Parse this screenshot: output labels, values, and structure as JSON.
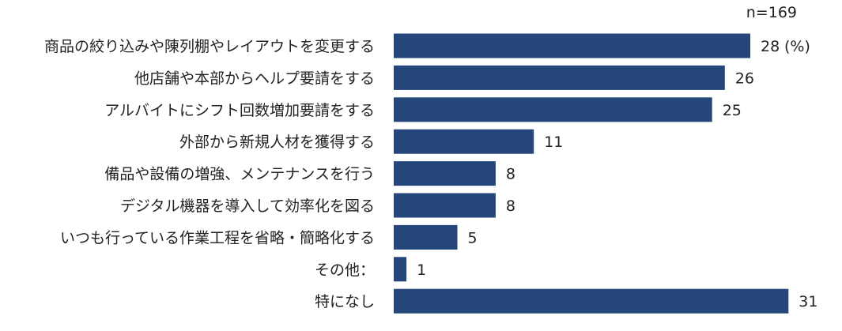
{
  "chart_data": {
    "type": "bar",
    "orientation": "horizontal",
    "sample_note": "n=169",
    "unit": "(%)",
    "categories": [
      "商品の絞り込みや陳列棚やレイアウトを変更する",
      "他店舗や本部からヘルプ要請をする",
      "アルバイトにシフト回数増加要請をする",
      "外部から新規人材を獲得する",
      "備品や設備の増強、メンテナンスを行う",
      "デジタル機器を導入して効率化を図る",
      "いつも行っている作業工程を省略・簡略化する",
      "その他：",
      "特になし"
    ],
    "values": [
      28,
      26,
      25,
      11,
      8,
      8,
      5,
      1,
      31
    ],
    "value_labels": [
      "28",
      "26",
      "25",
      "11",
      "8",
      "8",
      "5",
      "1",
      "31"
    ],
    "bar_color": "#25467a",
    "xlim": [
      0,
      31
    ],
    "grid": false,
    "legend": "none"
  }
}
